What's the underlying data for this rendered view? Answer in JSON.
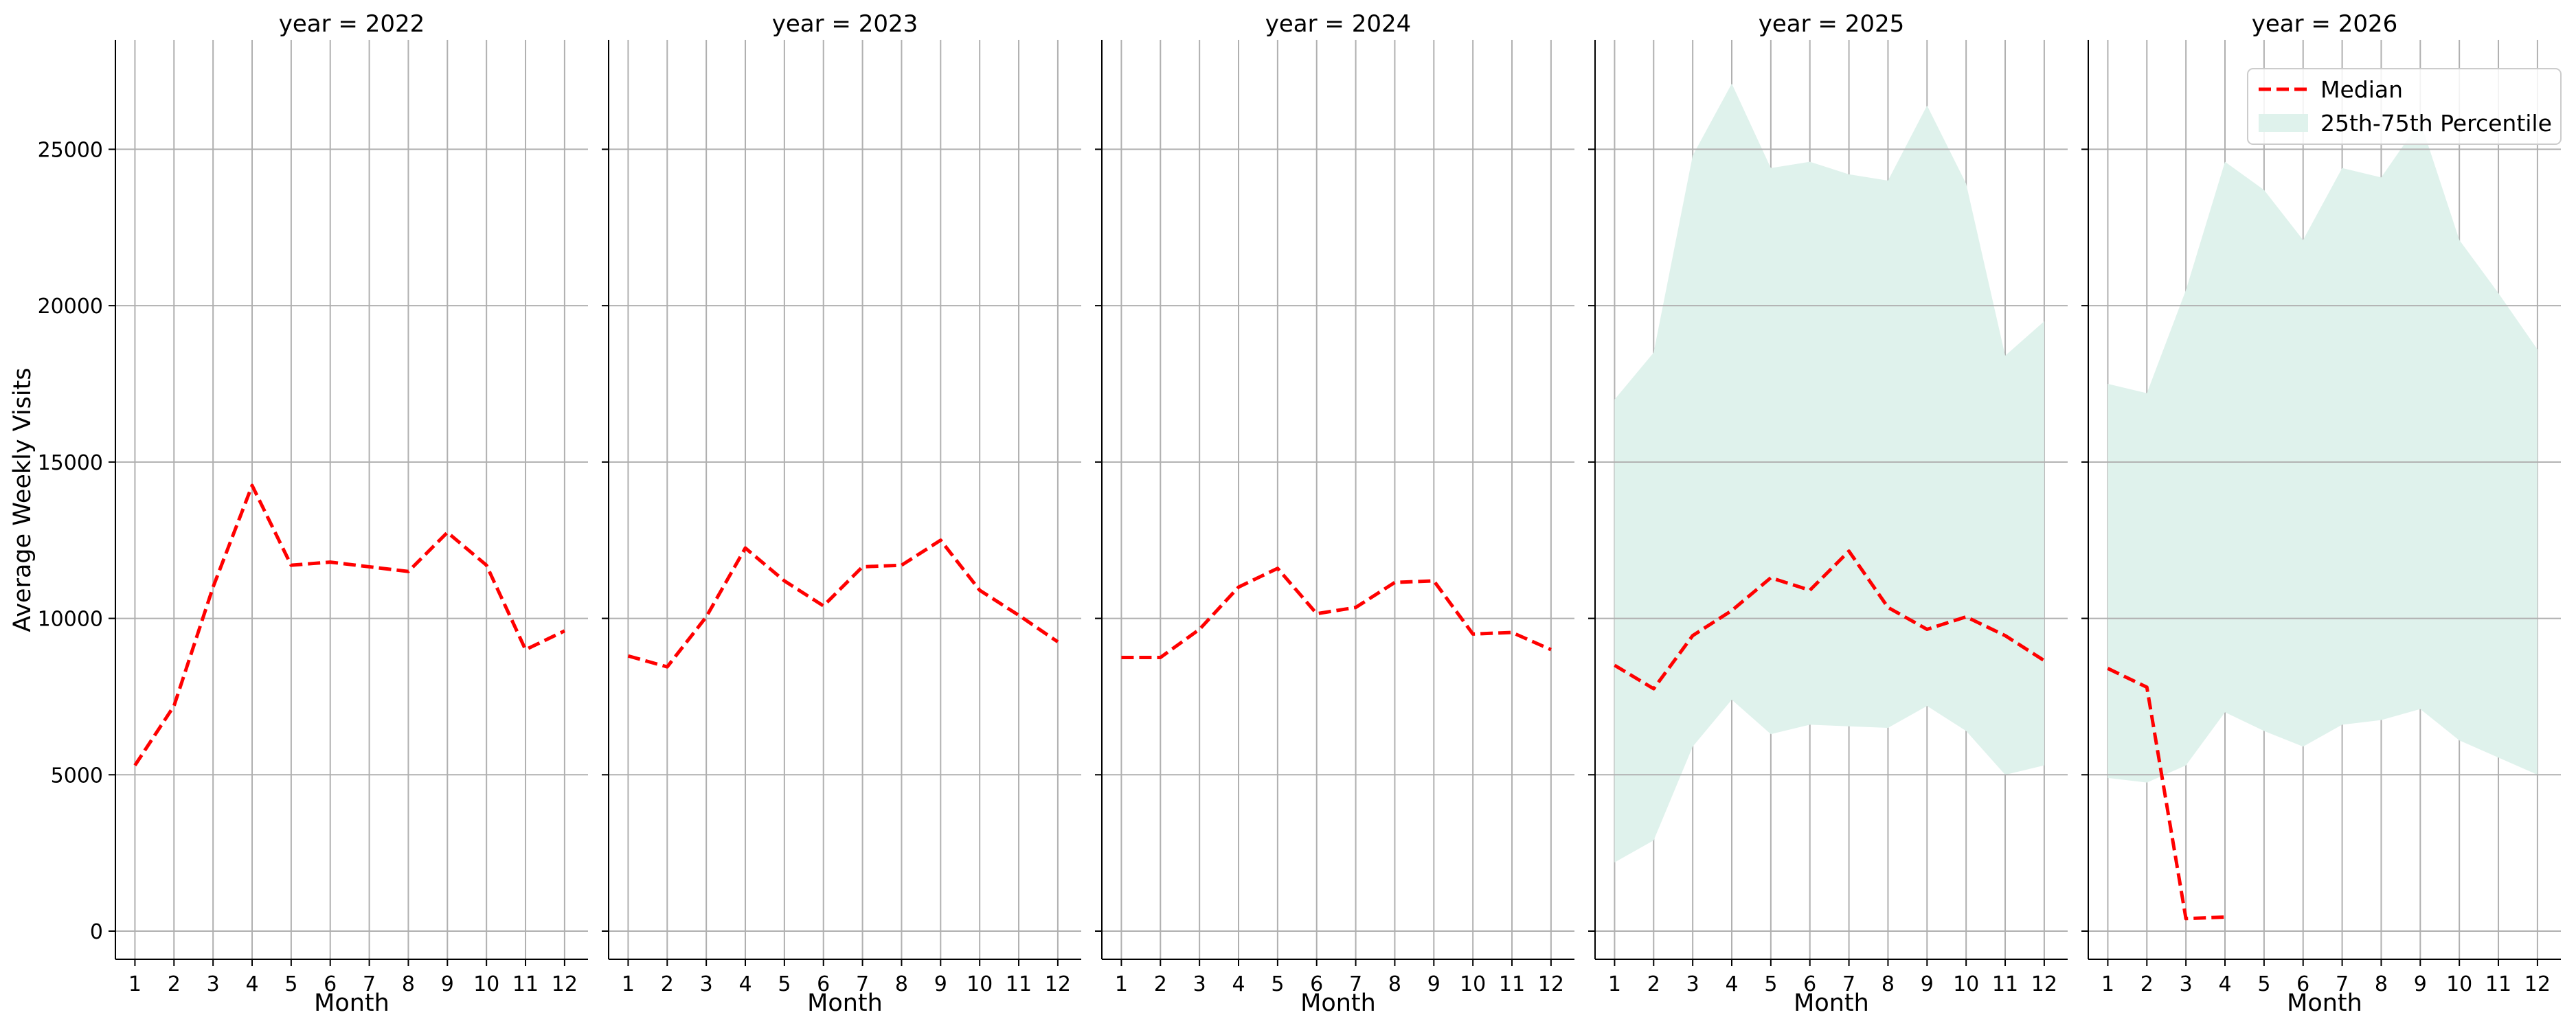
{
  "chart_data": {
    "type": "line",
    "facet_by": "year",
    "panel_titles": [
      "year = 2022",
      "year = 2023",
      "year = 2024",
      "year = 2025",
      "year = 2026"
    ],
    "xlabel": "Month",
    "ylabel": "Average Weekly Visits",
    "x_ticks": [
      1,
      2,
      3,
      4,
      5,
      6,
      7,
      8,
      9,
      10,
      11,
      12
    ],
    "y_ticks": [
      0,
      5000,
      10000,
      15000,
      20000,
      25000
    ],
    "ylim": [
      -900,
      28500
    ],
    "xlim": [
      0.5,
      12.6
    ],
    "grid": true,
    "legend_position": "upper right (last panel)",
    "colors": {
      "median": "#ff0000",
      "band": "#dff2ec"
    },
    "legend": [
      {
        "label": "Median",
        "kind": "dashed-line"
      },
      {
        "label": "25th-75th Percentile",
        "kind": "band"
      }
    ],
    "panels": [
      {
        "year": 2022,
        "median": [
          [
            1,
            5300
          ],
          [
            2,
            7200
          ],
          [
            3,
            11000
          ],
          [
            4,
            14250
          ],
          [
            5,
            11700
          ],
          [
            6,
            11800
          ],
          [
            7,
            11650
          ],
          [
            8,
            11500
          ],
          [
            9,
            12750
          ],
          [
            10,
            11700
          ],
          [
            11,
            9000
          ],
          [
            12,
            9600
          ]
        ],
        "band": null
      },
      {
        "year": 2023,
        "median": [
          [
            1,
            8800
          ],
          [
            2,
            8450
          ],
          [
            3,
            10050
          ],
          [
            4,
            12250
          ],
          [
            5,
            11200
          ],
          [
            6,
            10400
          ],
          [
            7,
            11650
          ],
          [
            8,
            11700
          ],
          [
            9,
            12500
          ],
          [
            10,
            10900
          ],
          [
            11,
            10100
          ],
          [
            12,
            9250
          ]
        ],
        "band": null
      },
      {
        "year": 2024,
        "median": [
          [
            1,
            8750
          ],
          [
            2,
            8750
          ],
          [
            3,
            9650
          ],
          [
            4,
            11000
          ],
          [
            5,
            11600
          ],
          [
            6,
            10150
          ],
          [
            7,
            10350
          ],
          [
            8,
            11150
          ],
          [
            9,
            11200
          ],
          [
            10,
            9500
          ],
          [
            11,
            9550
          ],
          [
            12,
            9000
          ]
        ],
        "band": null
      },
      {
        "year": 2025,
        "median": [
          [
            1,
            8500
          ],
          [
            2,
            7750
          ],
          [
            3,
            9450
          ],
          [
            4,
            10250
          ],
          [
            5,
            11300
          ],
          [
            6,
            10900
          ],
          [
            7,
            12150
          ],
          [
            8,
            10350
          ],
          [
            9,
            9650
          ],
          [
            10,
            10050
          ],
          [
            11,
            9450
          ],
          [
            12,
            8650
          ]
        ],
        "band": {
          "lower": [
            2200,
            2900,
            5900,
            7400,
            6300,
            6600,
            6550,
            6500,
            7200,
            6400,
            5000,
            5300
          ],
          "upper": [
            17000,
            18500,
            24800,
            27100,
            24400,
            24600,
            24200,
            24000,
            26400,
            23900,
            18400,
            19500
          ]
        }
      },
      {
        "year": 2026,
        "median": [
          [
            1,
            8400
          ],
          [
            2,
            7800
          ],
          [
            3,
            400
          ],
          [
            4,
            450
          ]
        ],
        "band": {
          "lower": [
            4900,
            4750,
            5300,
            7000,
            6400,
            5900,
            6600,
            6750,
            7100,
            6100,
            5550,
            5000
          ],
          "upper": [
            17500,
            17200,
            20500,
            24600,
            23700,
            22100,
            24400,
            24100,
            25900,
            22100,
            20400,
            18600
          ]
        }
      }
    ]
  }
}
